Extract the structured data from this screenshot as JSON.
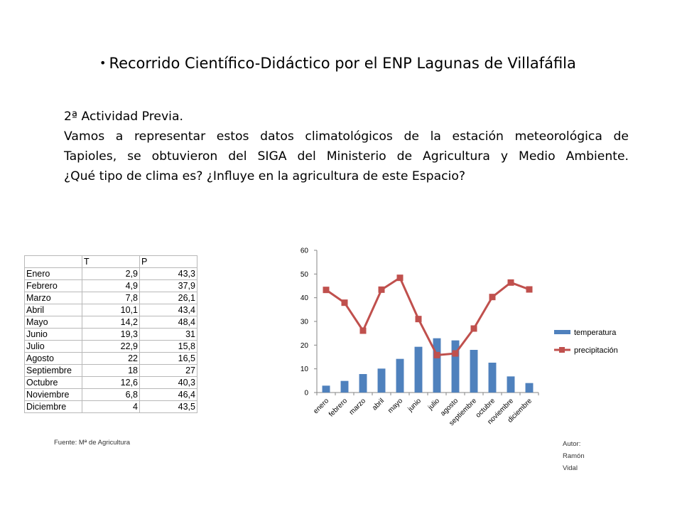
{
  "slide": {
    "title": "Recorrido Científico-Didáctico por el ENP Lagunas de Villafáfila",
    "bullet": "•",
    "lines": [
      "2ª Actividad Previa.",
      "Vamos a representar estos datos climatológicos de la estación meteorológica de",
      "Tapioles, se obtuvieron del SIGA del Ministerio de Agricultura y Medio Ambiente.",
      "¿Qué tipo de clima es? ¿Influye en la agricultura de este Espacio?"
    ],
    "source": "Fuente: Mª de Agricultura",
    "author_lines": [
      "Autor:",
      "Ramón",
      "Vidal"
    ]
  },
  "table": {
    "headers": [
      "",
      "T",
      "P"
    ],
    "rows": [
      [
        "Enero",
        "2,9",
        "43,3"
      ],
      [
        "Febrero",
        "4,9",
        "37,9"
      ],
      [
        "Marzo",
        "7,8",
        "26,1"
      ],
      [
        "Abril",
        "10,1",
        "43,4"
      ],
      [
        "Mayo",
        "14,2",
        "48,4"
      ],
      [
        "Junio",
        "19,3",
        "31"
      ],
      [
        "Julio",
        "22,9",
        "15,8"
      ],
      [
        "Agosto",
        "22",
        "16,5"
      ],
      [
        "Septiembre",
        "18",
        "27"
      ],
      [
        "Octubre",
        "12,6",
        "40,3"
      ],
      [
        "Noviembre",
        "6,8",
        "46,4"
      ],
      [
        "Diciembre",
        "4",
        "43,5"
      ]
    ]
  },
  "chart_data": {
    "type": "bar",
    "categories": [
      "enero",
      "febrero",
      "marzo",
      "abril",
      "mayo",
      "junio",
      "julio",
      "agosto",
      "septiembre",
      "octubre",
      "noviembre",
      "diciembre"
    ],
    "series": [
      {
        "name": "temperatura",
        "type": "bar",
        "color": "#4f81bd",
        "values": [
          2.9,
          4.9,
          7.8,
          10.1,
          14.2,
          19.3,
          22.9,
          22,
          18,
          12.6,
          6.8,
          4
        ]
      },
      {
        "name": "precipitación",
        "type": "line",
        "color": "#c0504d",
        "values": [
          43.3,
          37.9,
          26.1,
          43.4,
          48.4,
          31,
          15.8,
          16.5,
          27,
          40.3,
          46.4,
          43.5
        ]
      }
    ],
    "ylim": [
      0,
      60
    ],
    "yticks": [
      0,
      10,
      20,
      30,
      40,
      50,
      60
    ],
    "grid": false,
    "legend": "right"
  }
}
